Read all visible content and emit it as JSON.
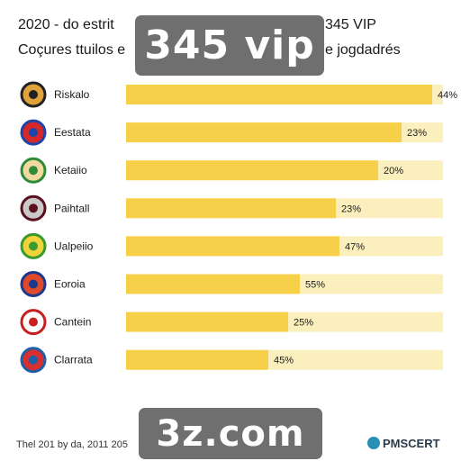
{
  "header": {
    "title_left": "2020 - do estrit",
    "title_right": "345 VIP",
    "subtitle_left": "Coçures ttuilos e",
    "subtitle_right": "e jogdadrés"
  },
  "overlays": {
    "top": "345 vip",
    "bottom": "3z.com"
  },
  "footer": {
    "left": "Thel 201 by da, 2011 205",
    "right": "PMSCERT"
  },
  "colors": {
    "bar": "#f7d04a",
    "track": "#fbf0bd",
    "banner": "#6f6f6f"
  },
  "chart_data": {
    "type": "bar",
    "orientation": "horizontal",
    "categories": [
      "Riskalo",
      "Eestata",
      "Ketaiio",
      "Paihtall",
      "Ualpeiio",
      "Eoroia",
      "Cantein",
      "Clarrata"
    ],
    "values": [
      44,
      23,
      20,
      23,
      47,
      55,
      25,
      45
    ],
    "value_labels": [
      "44%",
      "23%",
      "20%",
      "23%",
      "47%",
      "55%",
      "25%",
      "45%"
    ],
    "icons": [
      "club-badge-icon",
      "flag-icon",
      "club-badge-icon",
      "club-badge-icon",
      "club-badge-icon",
      "club-badge-icon",
      "club-badge-icon",
      "club-badge-icon"
    ],
    "title": "",
    "xlabel": "",
    "ylabel": "",
    "grid": false,
    "legend": "none"
  }
}
